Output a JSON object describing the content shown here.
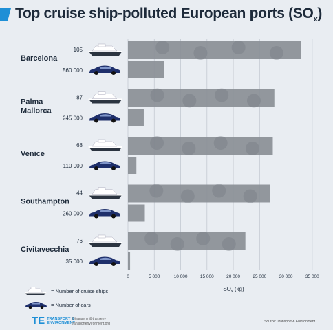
{
  "header": {
    "title_main": "Top cruise ship-polluted European ports (SO",
    "title_sub": "x",
    "title_end": ")",
    "accent_color": "#1e8fd6"
  },
  "chart_data": {
    "type": "bar",
    "orientation": "horizontal",
    "xlabel": "SOx (kg)",
    "xlabel_main": "SO",
    "xlabel_sub": "x",
    "xlabel_end": " (kg)",
    "xlim": [
      0,
      37500
    ],
    "xticks": [
      0,
      5000,
      10000,
      15000,
      20000,
      25000,
      30000,
      35000
    ],
    "xtick_labels": [
      "0",
      "5 000",
      "10 000",
      "15 000",
      "20 000",
      "25 000",
      "30 000",
      "35 000"
    ],
    "grid": true,
    "categories": [
      "Barcelona",
      "Palma Mallorca",
      "Venice",
      "Southampton",
      "Civitavecchia"
    ],
    "series": [
      {
        "name": "Number of cruise ships",
        "counts": [
          "105",
          "87",
          "68",
          "44",
          "76"
        ],
        "values": [
          32800,
          27800,
          27500,
          27000,
          22300
        ],
        "color": "#8a8f96"
      },
      {
        "name": "Number of cars",
        "counts": [
          "560 000",
          "245 000",
          "110 000",
          "260 000",
          "35 000"
        ],
        "values": [
          6800,
          3000,
          1600,
          3200,
          400
        ],
        "color": "#8a8f96"
      }
    ]
  },
  "legend": {
    "ship_label": "= Number of cruise ships",
    "car_label": "= Number of cars"
  },
  "footer": {
    "logo_line1": "TRANSPORT &",
    "logo_line2": "ENVIRONMENT",
    "social_line1": "@transenv   @transenv",
    "social_line2": "transportenvironment.org",
    "source": "Source: Transport & Environment"
  }
}
